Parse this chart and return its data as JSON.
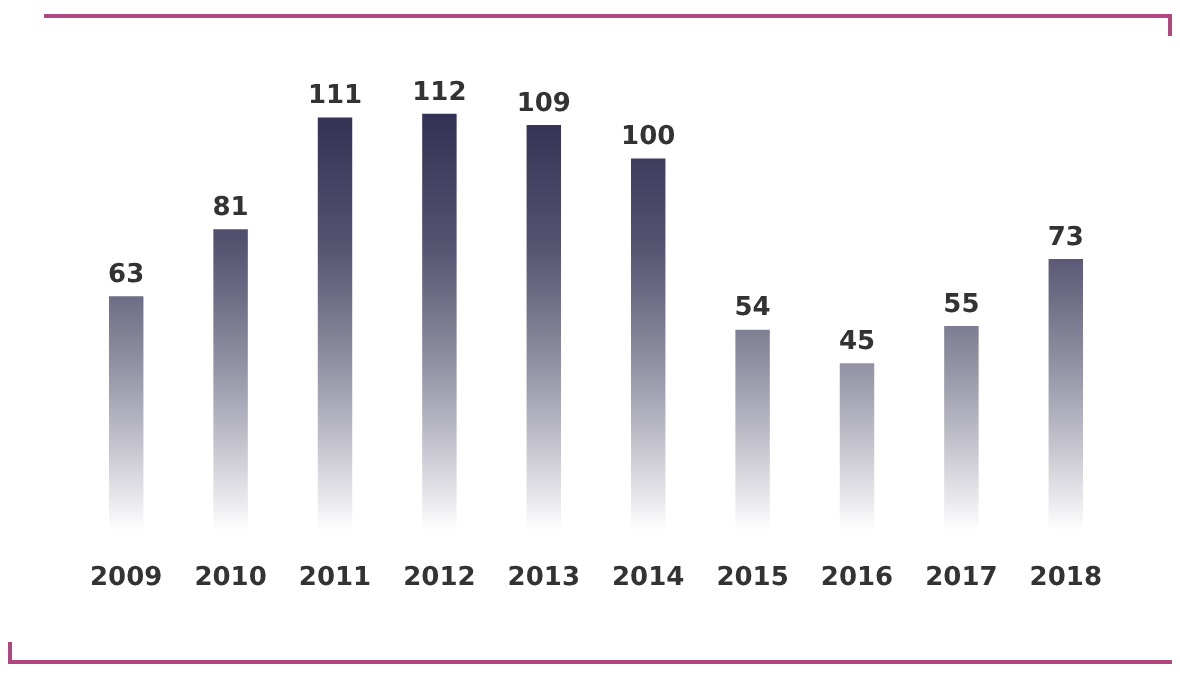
{
  "chart_data": {
    "type": "bar",
    "categories": [
      "2009",
      "2010",
      "2011",
      "2012",
      "2013",
      "2014",
      "2015",
      "2016",
      "2017",
      "2018"
    ],
    "values": [
      63,
      81,
      111,
      112,
      109,
      100,
      54,
      45,
      55,
      73
    ],
    "color": "#2c2a4e",
    "data_labels": true,
    "grid": false,
    "legend": false
  }
}
